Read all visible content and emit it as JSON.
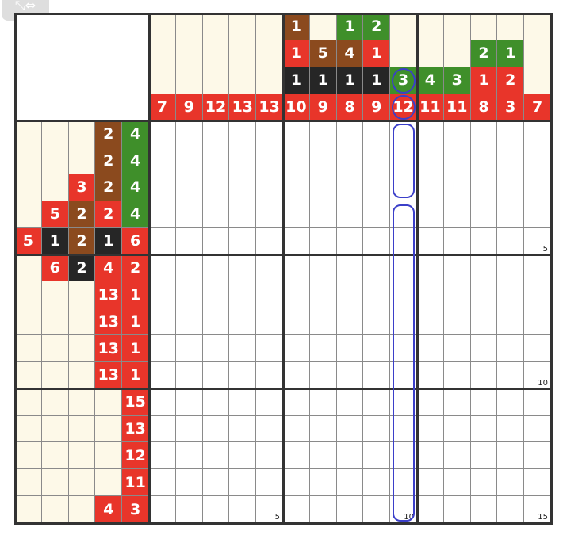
{
  "toolbar": {
    "icon": "expand-arrows-icon",
    "glyph": "⤡⇔"
  },
  "colors": {
    "R": "#e8352a",
    "B": "#8b4a1e",
    "G": "#3f8f2a",
    "K": "#262626",
    "cream": "#fdf9e8",
    "mark": "#3b3fc9"
  },
  "puzzle": {
    "size": 15,
    "column_clues": [
      [
        null,
        null,
        null,
        {
          "n": "7",
          "c": "R"
        }
      ],
      [
        null,
        null,
        null,
        {
          "n": "9",
          "c": "R"
        }
      ],
      [
        null,
        null,
        null,
        {
          "n": "12",
          "c": "R"
        }
      ],
      [
        null,
        null,
        null,
        {
          "n": "13",
          "c": "R"
        }
      ],
      [
        null,
        null,
        null,
        {
          "n": "13",
          "c": "R"
        }
      ],
      [
        {
          "n": "1",
          "c": "B"
        },
        {
          "n": "1",
          "c": "R"
        },
        {
          "n": "1",
          "c": "K"
        },
        {
          "n": "10",
          "c": "R"
        }
      ],
      [
        null,
        {
          "n": "5",
          "c": "B"
        },
        {
          "n": "1",
          "c": "K"
        },
        {
          "n": "9",
          "c": "R"
        }
      ],
      [
        {
          "n": "1",
          "c": "G"
        },
        {
          "n": "4",
          "c": "B"
        },
        {
          "n": "1",
          "c": "K"
        },
        {
          "n": "8",
          "c": "R"
        }
      ],
      [
        {
          "n": "2",
          "c": "G"
        },
        {
          "n": "1",
          "c": "R"
        },
        {
          "n": "1",
          "c": "K"
        },
        {
          "n": "9",
          "c": "R"
        }
      ],
      [
        null,
        null,
        {
          "n": "3",
          "c": "G"
        },
        {
          "n": "12",
          "c": "R"
        }
      ],
      [
        null,
        null,
        {
          "n": "4",
          "c": "G"
        },
        {
          "n": "11",
          "c": "R"
        }
      ],
      [
        null,
        null,
        {
          "n": "3",
          "c": "G"
        },
        {
          "n": "11",
          "c": "R"
        }
      ],
      [
        null,
        {
          "n": "2",
          "c": "G"
        },
        {
          "n": "1",
          "c": "R"
        },
        {
          "n": "8",
          "c": "R"
        }
      ],
      [
        null,
        {
          "n": "1",
          "c": "G"
        },
        {
          "n": "2",
          "c": "R"
        },
        {
          "n": "3",
          "c": "R"
        }
      ],
      [
        null,
        null,
        null,
        {
          "n": "7",
          "c": "R"
        }
      ]
    ],
    "row_clues": [
      [
        null,
        null,
        null,
        {
          "n": "2",
          "c": "B"
        },
        {
          "n": "4",
          "c": "G"
        }
      ],
      [
        null,
        null,
        null,
        {
          "n": "2",
          "c": "B"
        },
        {
          "n": "4",
          "c": "G"
        }
      ],
      [
        null,
        null,
        {
          "n": "3",
          "c": "R"
        },
        {
          "n": "2",
          "c": "B"
        },
        {
          "n": "4",
          "c": "G"
        }
      ],
      [
        null,
        {
          "n": "5",
          "c": "R"
        },
        {
          "n": "2",
          "c": "B"
        },
        {
          "n": "2",
          "c": "R"
        },
        {
          "n": "4",
          "c": "G"
        }
      ],
      [
        {
          "n": "5",
          "c": "R"
        },
        {
          "n": "1",
          "c": "K"
        },
        {
          "n": "2",
          "c": "B"
        },
        {
          "n": "1",
          "c": "K"
        },
        {
          "n": "6",
          "c": "R"
        }
      ],
      [
        null,
        {
          "n": "6",
          "c": "R"
        },
        {
          "n": "2",
          "c": "K"
        },
        {
          "n": "4",
          "c": "R"
        },
        {
          "n": "2",
          "c": "R"
        }
      ],
      [
        null,
        null,
        null,
        {
          "n": "13",
          "c": "R"
        },
        {
          "n": "1",
          "c": "R"
        }
      ],
      [
        null,
        null,
        null,
        {
          "n": "13",
          "c": "R"
        },
        {
          "n": "1",
          "c": "R"
        }
      ],
      [
        null,
        null,
        null,
        {
          "n": "13",
          "c": "R"
        },
        {
          "n": "1",
          "c": "R"
        }
      ],
      [
        null,
        null,
        null,
        {
          "n": "13",
          "c": "R"
        },
        {
          "n": "1",
          "c": "R"
        }
      ],
      [
        null,
        null,
        null,
        null,
        {
          "n": "15",
          "c": "R"
        }
      ],
      [
        null,
        null,
        null,
        null,
        {
          "n": "13",
          "c": "R"
        }
      ],
      [
        null,
        null,
        null,
        null,
        {
          "n": "12",
          "c": "R"
        }
      ],
      [
        null,
        null,
        null,
        null,
        {
          "n": "11",
          "c": "R"
        }
      ],
      [
        null,
        null,
        null,
        {
          "n": "4",
          "c": "R"
        },
        {
          "n": "3",
          "c": "R"
        }
      ]
    ],
    "row_numbers": {
      "5": "5",
      "10": "10",
      "15": "15"
    },
    "column_numbers": {
      "5": "5",
      "10": "10",
      "15": "15"
    },
    "highlighted_column": 10
  }
}
